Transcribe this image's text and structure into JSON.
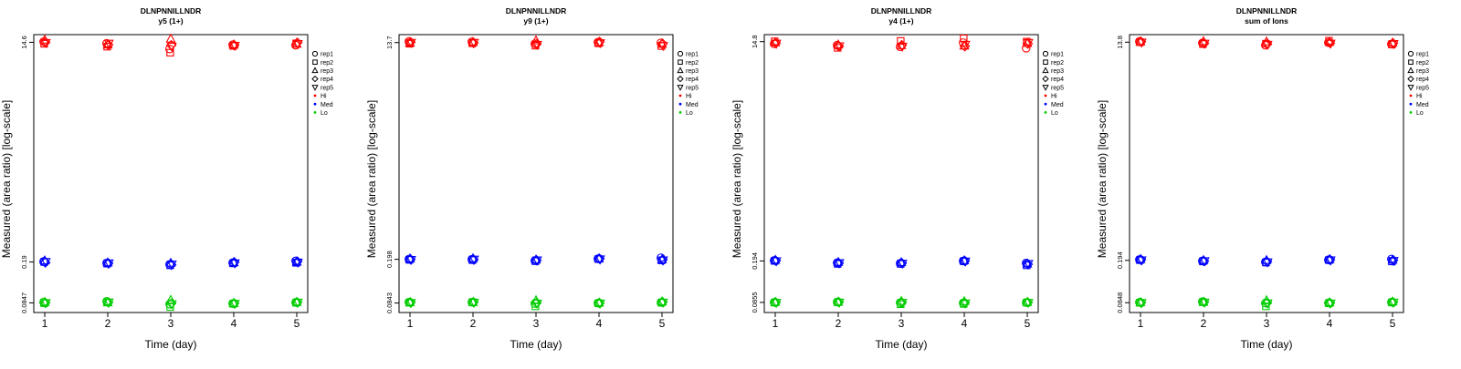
{
  "chart_data": [
    {
      "type": "scatter",
      "title": "DLNPNNILLNDR",
      "subtitle": "y5 (1+)",
      "xlabel": "Time (day)",
      "ylabel": "Measured (area ratio) [log-scale]",
      "x_ticks": [
        "1",
        "2",
        "3",
        "4",
        "5"
      ],
      "y_ticks": [
        {
          "value": 14.6,
          "label": "14.6"
        },
        {
          "value": 0.19,
          "label": "0.19"
        },
        {
          "value": 0.0847,
          "label": "0.0847"
        }
      ],
      "ylim": [
        0.07,
        17
      ],
      "legend": [
        {
          "label": "rep1",
          "marker": "circle"
        },
        {
          "label": "rep2",
          "marker": "square"
        },
        {
          "label": "rep3",
          "marker": "triangle-up"
        },
        {
          "label": "rep4",
          "marker": "diamond"
        },
        {
          "label": "rep5",
          "marker": "triangle-down"
        },
        {
          "label": "Hi",
          "color": "#ff0000"
        },
        {
          "label": "Med",
          "color": "#0000ff"
        },
        {
          "label": "Lo",
          "color": "#00cc00"
        }
      ],
      "series": [
        {
          "name": "Hi",
          "color": "#ff0000",
          "values": [
            [
              14.8,
              14.2,
              15.3,
              14.6,
              14.5
            ],
            [
              14.3,
              13.4,
              13.9,
              13.9,
              14.3
            ],
            [
              12.8,
              11.9,
              15.6,
              13.8,
              13.5
            ],
            [
              13.9,
              13.6,
              13.9,
              13.8,
              13.7
            ],
            [
              13.8,
              14.3,
              14.1,
              14.5,
              14.2
            ]
          ]
        },
        {
          "name": "Med",
          "color": "#0000ff",
          "values": [
            [
              0.192,
              0.19,
              0.195,
              0.188,
              0.191
            ],
            [
              0.186,
              0.184,
              0.187,
              0.185,
              0.186
            ],
            [
              0.181,
              0.178,
              0.186,
              0.18,
              0.182
            ],
            [
              0.187,
              0.185,
              0.188,
              0.189,
              0.186
            ],
            [
              0.194,
              0.187,
              0.19,
              0.192,
              0.189
            ]
          ]
        },
        {
          "name": "Lo",
          "color": "#00cc00",
          "values": [
            [
              0.0862,
              0.0842,
              0.0856,
              0.085,
              0.0848
            ],
            [
              0.0872,
              0.086,
              0.0851,
              0.0855,
              0.0858
            ],
            [
              0.0825,
              0.078,
              0.0895,
              0.0838,
              0.0829
            ],
            [
              0.0836,
              0.0832,
              0.084,
              0.0838,
              0.0837
            ],
            [
              0.0855,
              0.0852,
              0.0858,
              0.0854,
              0.0856
            ]
          ]
        }
      ]
    },
    {
      "type": "scatter",
      "title": "DLNPNNILLNDR",
      "subtitle": "y9 (1+)",
      "xlabel": "Time (day)",
      "ylabel": "Measured (area ratio) [log-scale]",
      "x_ticks": [
        "1",
        "2",
        "3",
        "4",
        "5"
      ],
      "y_ticks": [
        {
          "value": 13.7,
          "label": "13.7"
        },
        {
          "value": 0.198,
          "label": "0.198"
        },
        {
          "value": 0.0843,
          "label": "0.0843"
        }
      ],
      "ylim": [
        0.07,
        16
      ],
      "legend": [
        {
          "label": "rep1",
          "marker": "circle"
        },
        {
          "label": "rep2",
          "marker": "square"
        },
        {
          "label": "rep3",
          "marker": "triangle-up"
        },
        {
          "label": "rep4",
          "marker": "diamond"
        },
        {
          "label": "rep5",
          "marker": "triangle-down"
        },
        {
          "label": "Hi",
          "color": "#ff0000"
        },
        {
          "label": "Med",
          "color": "#0000ff"
        },
        {
          "label": "Lo",
          "color": "#00cc00"
        }
      ],
      "series": [
        {
          "name": "Hi",
          "color": "#ff0000",
          "values": [
            [
              14.0,
              13.4,
              13.6,
              13.8,
              13.7
            ],
            [
              13.9,
              13.5,
              13.8,
              13.6,
              13.7
            ],
            [
              13.4,
              12.9,
              14.2,
              13.3,
              13.2
            ],
            [
              13.8,
              13.5,
              13.7,
              13.9,
              13.6
            ],
            [
              13.6,
              12.8,
              13.3,
              13.4,
              12.9
            ]
          ]
        },
        {
          "name": "Med",
          "color": "#0000ff",
          "values": [
            [
              0.199,
              0.196,
              0.2,
              0.198,
              0.197
            ],
            [
              0.198,
              0.195,
              0.201,
              0.197,
              0.198
            ],
            [
              0.193,
              0.191,
              0.196,
              0.194,
              0.195
            ],
            [
              0.2,
              0.199,
              0.201,
              0.2,
              0.199
            ],
            [
              0.204,
              0.194,
              0.197,
              0.196,
              0.195
            ]
          ]
        },
        {
          "name": "Lo",
          "color": "#00cc00",
          "values": [
            [
              0.0858,
              0.0848,
              0.0854,
              0.0851,
              0.0849
            ],
            [
              0.0855,
              0.0858,
              0.0852,
              0.0856,
              0.0853
            ],
            [
              0.0835,
              0.079,
              0.0885,
              0.0845,
              0.084
            ],
            [
              0.0842,
              0.0838,
              0.0845,
              0.0841,
              0.0839
            ],
            [
              0.0852,
              0.0848,
              0.0865,
              0.0858,
              0.0855
            ]
          ]
        }
      ]
    },
    {
      "type": "scatter",
      "title": "DLNPNNILLNDR",
      "subtitle": "y4 (1+)",
      "xlabel": "Time (day)",
      "ylabel": "Measured (area ratio) [log-scale]",
      "x_ticks": [
        "1",
        "2",
        "3",
        "4",
        "5"
      ],
      "y_ticks": [
        {
          "value": 14.8,
          "label": "14.8"
        },
        {
          "value": 0.194,
          "label": "0.194"
        },
        {
          "value": 0.0855,
          "label": "0.0855"
        }
      ],
      "ylim": [
        0.07,
        17
      ],
      "legend": [
        {
          "label": "rep1",
          "marker": "circle"
        },
        {
          "label": "rep2",
          "marker": "square"
        },
        {
          "label": "rep3",
          "marker": "triangle-up"
        },
        {
          "label": "rep4",
          "marker": "diamond"
        },
        {
          "label": "rep5",
          "marker": "triangle-down"
        },
        {
          "label": "Hi",
          "color": "#ff0000"
        },
        {
          "label": "Med",
          "color": "#0000ff"
        },
        {
          "label": "Lo",
          "color": "#00cc00"
        }
      ],
      "series": [
        {
          "name": "Hi",
          "color": "#ff0000",
          "values": [
            [
              14.2,
              14.9,
              14.5,
              14.4,
              14.3
            ],
            [
              13.8,
              13.1,
              13.9,
              13.5,
              13.6
            ],
            [
              13.4,
              15.0,
              13.7,
              13.8,
              13.5
            ],
            [
              14.5,
              15.8,
              13.6,
              13.5,
              14.0
            ],
            [
              13.0,
              14.8,
              14.3,
              14.2,
              14.5
            ]
          ]
        },
        {
          "name": "Med",
          "color": "#0000ff",
          "values": [
            [
              0.196,
              0.194,
              0.197,
              0.195,
              0.194
            ],
            [
              0.187,
              0.183,
              0.189,
              0.186,
              0.187
            ],
            [
              0.185,
              0.183,
              0.188,
              0.186,
              0.185
            ],
            [
              0.194,
              0.193,
              0.195,
              0.194,
              0.193
            ],
            [
              0.186,
              0.178,
              0.183,
              0.182,
              0.184
            ]
          ]
        },
        {
          "name": "Lo",
          "color": "#00cc00",
          "values": [
            [
              0.0856,
              0.0852,
              0.0858,
              0.0855,
              0.0853
            ],
            [
              0.0862,
              0.0858,
              0.086,
              0.0859,
              0.0857
            ],
            [
              0.085,
              0.0825,
              0.0875,
              0.0855,
              0.0852
            ],
            [
              0.0845,
              0.083,
              0.087,
              0.0848,
              0.0842
            ],
            [
              0.0854,
              0.0852,
              0.0856,
              0.0855,
              0.0853
            ]
          ]
        }
      ]
    },
    {
      "type": "scatter",
      "title": "DLNPNNILLNDR",
      "subtitle": "sum of Ions",
      "xlabel": "Time (day)",
      "ylabel": "Measured (area ratio) [log-scale]",
      "x_ticks": [
        "1",
        "2",
        "3",
        "4",
        "5"
      ],
      "y_ticks": [
        {
          "value": 13.8,
          "label": "13.8"
        },
        {
          "value": 0.194,
          "label": "0.194"
        },
        {
          "value": 0.0848,
          "label": "0.0848"
        }
      ],
      "ylim": [
        0.07,
        16
      ],
      "legend": [
        {
          "label": "rep1",
          "marker": "circle"
        },
        {
          "label": "rep2",
          "marker": "square"
        },
        {
          "label": "rep3",
          "marker": "triangle-up"
        },
        {
          "label": "rep4",
          "marker": "diamond"
        },
        {
          "label": "rep5",
          "marker": "triangle-down"
        },
        {
          "label": "Hi",
          "color": "#ff0000"
        },
        {
          "label": "Med",
          "color": "#0000ff"
        },
        {
          "label": "Lo",
          "color": "#00cc00"
        }
      ],
      "series": [
        {
          "name": "Hi",
          "color": "#ff0000",
          "values": [
            [
              14.0,
              13.8,
              13.9,
              13.9,
              13.8
            ],
            [
              13.6,
              13.3,
              14.0,
              13.5,
              13.5
            ],
            [
              13.0,
              13.4,
              13.9,
              13.3,
              13.2
            ],
            [
              13.7,
              14.2,
              13.8,
              13.6,
              13.5
            ],
            [
              13.3,
              13.2,
              13.6,
              13.5,
              13.4
            ]
          ]
        },
        {
          "name": "Med",
          "color": "#0000ff",
          "values": [
            [
              0.197,
              0.195,
              0.198,
              0.196,
              0.195
            ],
            [
              0.192,
              0.19,
              0.194,
              0.191,
              0.192
            ],
            [
              0.188,
              0.186,
              0.194,
              0.189,
              0.188
            ],
            [
              0.196,
              0.195,
              0.197,
              0.196,
              0.195
            ],
            [
              0.199,
              0.19,
              0.195,
              0.194,
              0.193
            ]
          ]
        },
        {
          "name": "Lo",
          "color": "#00cc00",
          "values": [
            [
              0.0855,
              0.0846,
              0.0852,
              0.0849,
              0.0848
            ],
            [
              0.0865,
              0.0858,
              0.0856,
              0.0857,
              0.0855
            ],
            [
              0.084,
              0.079,
              0.0885,
              0.0845,
              0.0842
            ],
            [
              0.0845,
              0.0838,
              0.0848,
              0.0843,
              0.084
            ],
            [
              0.0858,
              0.0852,
              0.0862,
              0.0856,
              0.0855
            ]
          ]
        }
      ]
    }
  ]
}
